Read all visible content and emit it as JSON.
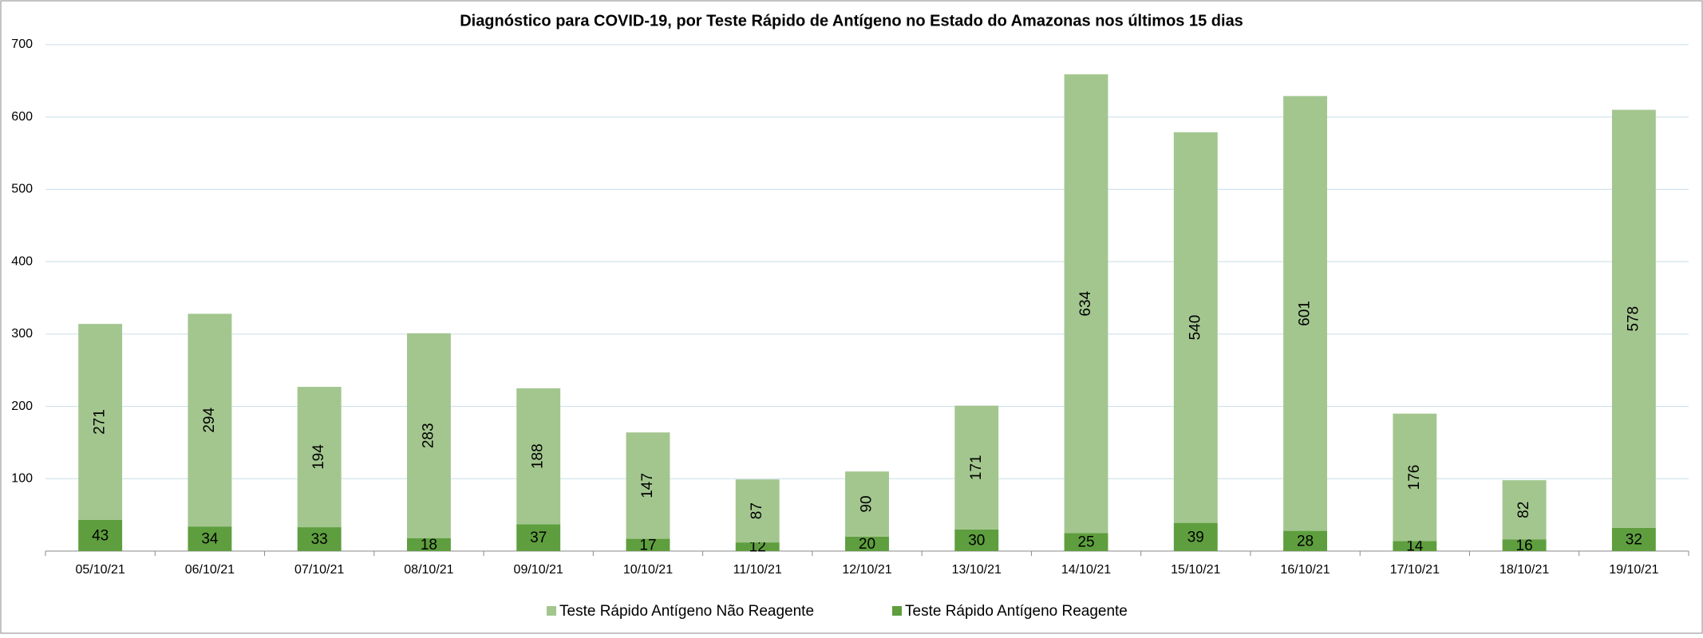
{
  "chart_data": {
    "type": "stacked_bar",
    "title": "Diagnóstico para COVID-19, por  Teste Rápido de Antígeno no Estado do Amazonas nos últimos 15 dias",
    "categories": [
      "05/10/21",
      "06/10/21",
      "07/10/21",
      "08/10/21",
      "09/10/21",
      "10/10/21",
      "11/10/21",
      "12/10/21",
      "13/10/21",
      "14/10/21",
      "15/10/21",
      "16/10/21",
      "17/10/21",
      "18/10/21",
      "19/10/21"
    ],
    "series": [
      {
        "name": "Teste Rápido Antígeno Não Reagente",
        "color": "#a3c68f",
        "values": [
          271,
          294,
          194,
          283,
          188,
          147,
          87,
          90,
          171,
          634,
          540,
          601,
          176,
          82,
          578
        ]
      },
      {
        "name": "Teste Rápido Antígeno Reagente",
        "color": "#5e9e3e",
        "values": [
          43,
          34,
          33,
          18,
          37,
          17,
          12,
          20,
          30,
          25,
          39,
          28,
          14,
          16,
          32
        ]
      }
    ],
    "ylim": [
      0,
      700
    ],
    "yticks": [
      100,
      200,
      300,
      400,
      500,
      600,
      700
    ],
    "grid": true,
    "legend": "bottom"
  }
}
